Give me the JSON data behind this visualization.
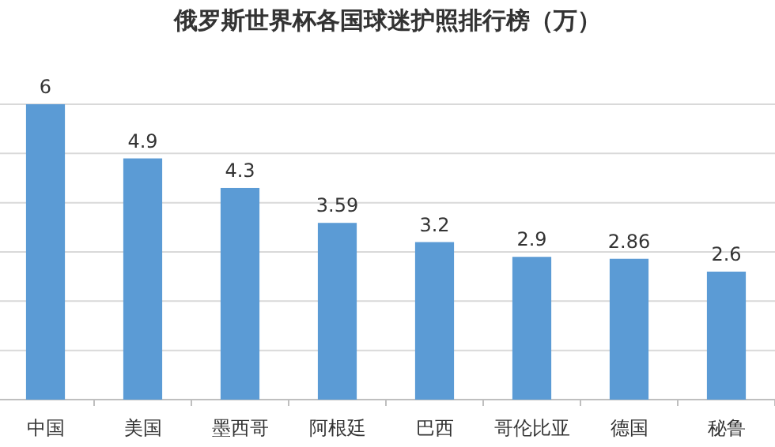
{
  "chart_data": {
    "type": "bar",
    "title": "俄罗斯世界杯各国球迷护照排行榜（万）",
    "categories": [
      "中国",
      "美国",
      "墨西哥",
      "阿根廷",
      "巴西",
      "哥伦比亚",
      "德国",
      "秘鲁"
    ],
    "values": [
      6,
      4.9,
      4.3,
      3.59,
      3.2,
      2.9,
      2.86,
      2.6
    ],
    "color": "#5b9bd5",
    "data_labels": true,
    "grid": "y",
    "tick_labels": "x",
    "ylim": [
      0,
      6
    ],
    "yticks": [
      {
        "value": 0,
        "label": null
      },
      {
        "value": 1,
        "label": null
      },
      {
        "value": 2,
        "label": null
      },
      {
        "value": 3,
        "label": null
      },
      {
        "value": 4,
        "label": null
      },
      {
        "value": 5,
        "label": null
      },
      {
        "value": 6,
        "label": null
      }
    ]
  }
}
